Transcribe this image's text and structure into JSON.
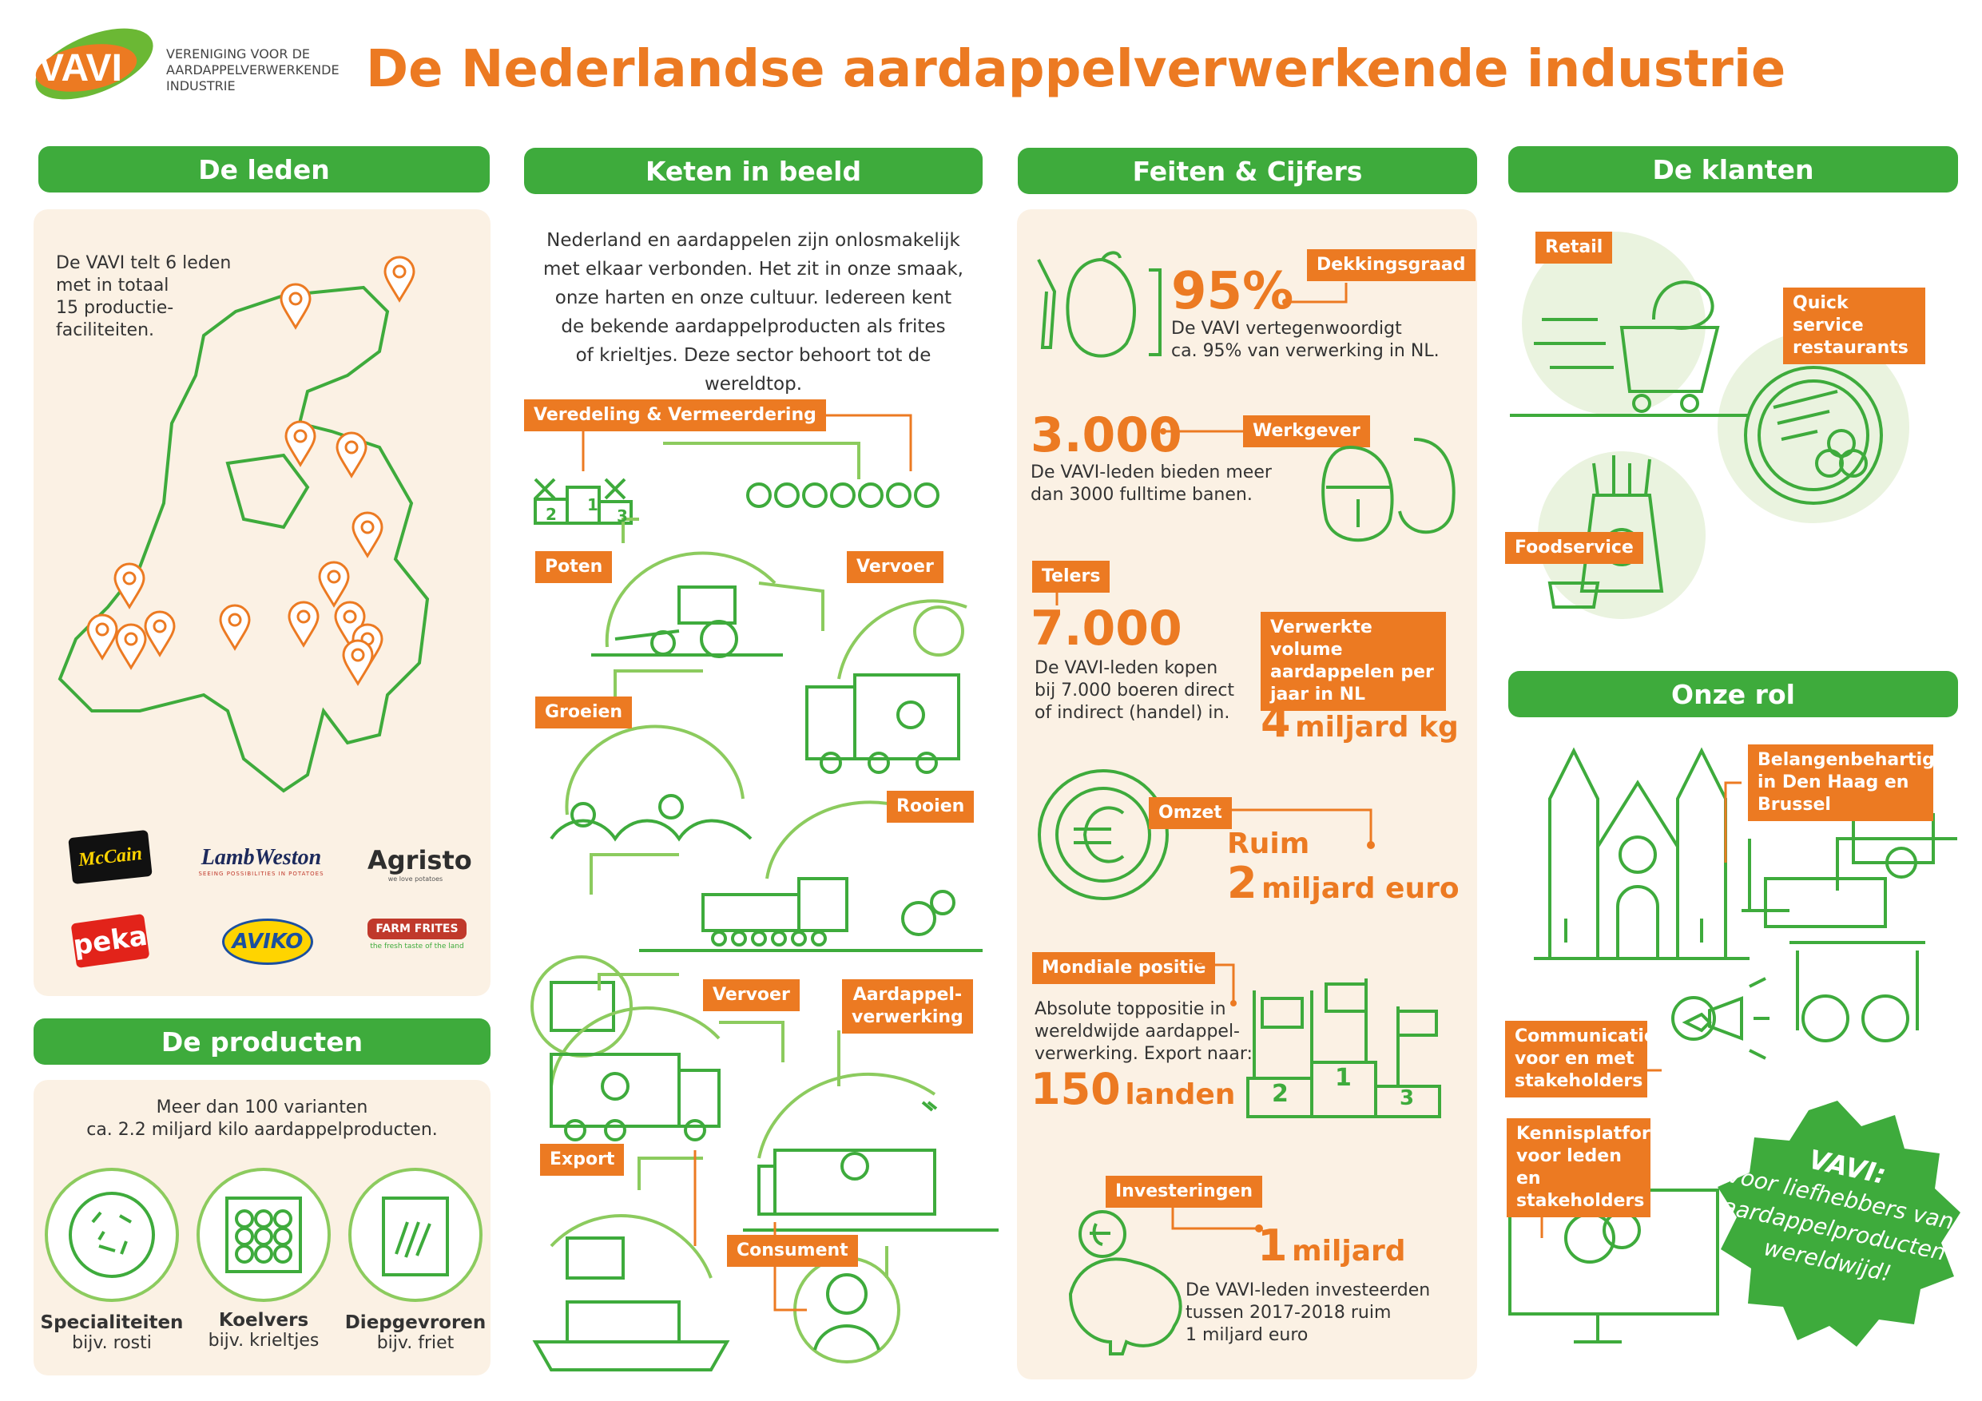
{
  "logo": {
    "text": "VAVI",
    "tagline": [
      "VERENIGING VOOR DE",
      "AARDAPPELVERWERKENDE",
      "INDUSTRIE"
    ]
  },
  "title": "De Nederlandse aardappelverwerkende industrie",
  "sections": {
    "leden": {
      "header": "De leden",
      "text": [
        "De VAVI telt 6 leden",
        "met in totaal",
        "15 productie-",
        "faciliteiten."
      ],
      "member_logos": [
        {
          "name": "McCain"
        },
        {
          "name": "LambWeston",
          "tagline": "SEEING POSSIBILITIES IN POTATOES"
        },
        {
          "name": "Agristo",
          "tagline": "we love potatoes"
        },
        {
          "name": "peka"
        },
        {
          "name": "AVIKO"
        },
        {
          "name": "FARM FRITES",
          "tagline": "the fresh taste of the land"
        }
      ]
    },
    "producten": {
      "header": "De producten",
      "text": [
        "Meer dan 100 varianten",
        "ca. 2.2 miljard kilo aardappelproducten."
      ],
      "items": [
        {
          "name": "Specialiteiten",
          "example": "bijv. rosti"
        },
        {
          "name": "Koelvers",
          "example": "bijv. krieltjes"
        },
        {
          "name": "Diepgevroren",
          "example": "bijv. friet"
        }
      ]
    },
    "keten": {
      "header": "Keten in beeld",
      "intro": [
        "Nederland en aardappelen zijn onlosmakelijk",
        "met elkaar verbonden. Het zit in onze smaak,",
        "onze harten en onze cultuur. Iedereen kent",
        "de bekende aardappelproducten als frites",
        "of krieltjes. Deze sector behoort tot de wereldtop."
      ],
      "steps": {
        "veredeling": "Veredeling & Vermeerdering",
        "poten": "Poten",
        "vervoer1": "Vervoer",
        "groeien": "Groeien",
        "rooien": "Rooien",
        "vervoer2": "Vervoer",
        "verwerking": [
          "Aardappel-",
          "verwerking"
        ],
        "export": "Export",
        "consument": "Consument"
      },
      "podium": [
        "2",
        "1",
        "3"
      ]
    },
    "feiten": {
      "header": "Feiten & Cijfers",
      "dekking": {
        "tag": "Dekkingsgraad",
        "number": "95%",
        "text": [
          "De VAVI vertegenwoordigt",
          "ca. 95% van verwerking in NL."
        ]
      },
      "werkgever": {
        "tag": "Werkgever",
        "number": "3.000",
        "text": [
          "De VAVI-leden bieden meer",
          "dan 3000 fulltime banen."
        ]
      },
      "telers": {
        "tag": "Telers",
        "number": "7.000",
        "text": [
          "De VAVI-leden kopen",
          "bij 7.000 boeren direct",
          "of indirect (handel) in."
        ]
      },
      "volume": {
        "tag": [
          "Verwerkte volume",
          "aardappelen per",
          "jaar in NL"
        ],
        "number": "4",
        "unit": "miljard kg"
      },
      "omzet": {
        "tag": "Omzet",
        "line1": "Ruim",
        "number": "2",
        "unit": "miljard euro"
      },
      "mondiaal": {
        "tag": "Mondiale positie",
        "text": [
          "Absolute toppositie in",
          "wereldwijde aardappel-",
          "verwerking. Export naar:"
        ],
        "number": "150",
        "unit": "landen",
        "podium": [
          "2",
          "1",
          "3"
        ]
      },
      "investeringen": {
        "tag": "Investeringen",
        "number": "1",
        "unit": "miljard",
        "text": [
          "De VAVI-leden investeerden",
          "tussen 2017-2018 ruim",
          "1 miljard euro"
        ]
      }
    },
    "klanten": {
      "header": "De klanten",
      "retail": "Retail",
      "qsr": [
        "Quick service",
        "restaurants"
      ],
      "foodservice": "Foodservice"
    },
    "rol": {
      "header": "Onze rol",
      "belangen": [
        "Belangenbehartiging",
        "in Den Haag en Brussel"
      ],
      "communicatie": [
        "Communicatie",
        "voor en met",
        "stakeholders"
      ],
      "kennis": [
        "Kennisplatform",
        "voor leden en",
        "stakeholders"
      ],
      "badge": {
        "title": "VAVI:",
        "lines": [
          "voor liefhebbers van",
          "aardappelproducten",
          "wereldwijd!"
        ]
      }
    }
  },
  "colors": {
    "green": "#3eab3c",
    "orange": "#ec7a22",
    "light_green": "#8ccb5e",
    "beige": "#fbf1e4"
  }
}
